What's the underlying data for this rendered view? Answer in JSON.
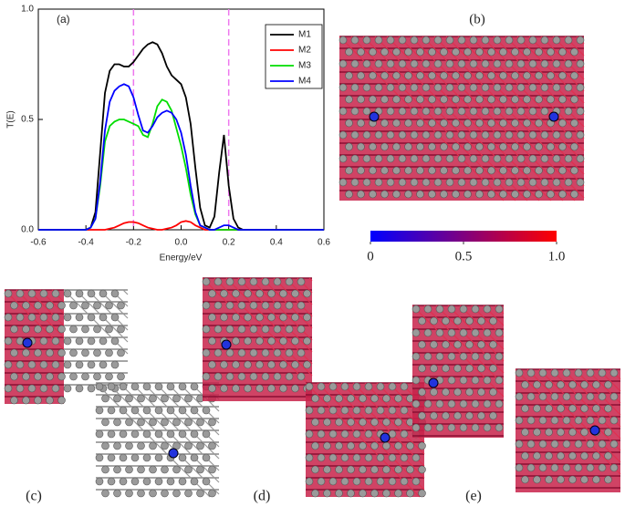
{
  "chart_data": {
    "type": "line",
    "panel_label": "(a)",
    "xlabel": "Energy/eV",
    "ylabel": "T(E)",
    "x": [
      -0.6,
      -0.4,
      -0.38,
      -0.36,
      -0.34,
      -0.32,
      -0.3,
      -0.28,
      -0.26,
      -0.24,
      -0.22,
      -0.2,
      -0.18,
      -0.16,
      -0.14,
      -0.12,
      -0.1,
      -0.08,
      -0.06,
      -0.04,
      -0.02,
      0,
      0.02,
      0.04,
      0.06,
      0.08,
      0.1,
      0.12,
      0.14,
      0.16,
      0.18,
      0.2,
      0.22,
      0.24,
      0.26,
      0.28,
      0.4,
      0.6
    ],
    "series": [
      {
        "name": "M1",
        "color": "#000000",
        "values": [
          0,
          0,
          0.01,
          0.08,
          0.35,
          0.62,
          0.72,
          0.75,
          0.75,
          0.74,
          0.74,
          0.76,
          0.79,
          0.82,
          0.84,
          0.85,
          0.84,
          0.8,
          0.74,
          0.7,
          0.68,
          0.66,
          0.6,
          0.48,
          0.28,
          0.1,
          0.02,
          0.01,
          0.06,
          0.26,
          0.43,
          0.2,
          0.05,
          0.01,
          0,
          0,
          0,
          0
        ]
      },
      {
        "name": "M2",
        "color": "#ff0000",
        "values": [
          0,
          0,
          0,
          0,
          0,
          0,
          0.005,
          0.01,
          0.02,
          0.03,
          0.035,
          0.035,
          0.03,
          0.02,
          0.01,
          0.005,
          0,
          0,
          0.005,
          0.01,
          0.02,
          0.035,
          0.04,
          0.035,
          0.02,
          0.01,
          0,
          0,
          0,
          0,
          0,
          0,
          0,
          0,
          0,
          0,
          0,
          0
        ]
      },
      {
        "name": "M3",
        "color": "#00dd00",
        "values": [
          0,
          0,
          0.01,
          0.05,
          0.2,
          0.4,
          0.47,
          0.49,
          0.5,
          0.5,
          0.49,
          0.48,
          0.47,
          0.43,
          0.42,
          0.48,
          0.56,
          0.59,
          0.58,
          0.54,
          0.46,
          0.38,
          0.28,
          0.16,
          0.07,
          0.02,
          0.01,
          0,
          0,
          0,
          0,
          0,
          0,
          0,
          0,
          0,
          0,
          0
        ]
      },
      {
        "name": "M4",
        "color": "#0000ff",
        "values": [
          0,
          0,
          0.01,
          0.05,
          0.22,
          0.45,
          0.58,
          0.63,
          0.65,
          0.66,
          0.65,
          0.6,
          0.52,
          0.45,
          0.44,
          0.47,
          0.51,
          0.53,
          0.54,
          0.53,
          0.5,
          0.44,
          0.34,
          0.2,
          0.08,
          0.02,
          0.01,
          0,
          0,
          0.01,
          0.02,
          0.02,
          0.01,
          0,
          0,
          0,
          0,
          0
        ]
      }
    ],
    "xlim": [
      -0.6,
      0.6
    ],
    "xticks": [
      -0.6,
      -0.4,
      -0.2,
      {
        "value": 0,
        "label": "0.0"
      },
      0.2,
      0.4,
      0.6
    ],
    "ylim": [
      0,
      1
    ],
    "yticks": [
      {
        "value": 0,
        "label": "0.0"
      },
      0.5,
      {
        "value": 1,
        "label": "1.0"
      }
    ],
    "vlines": [
      -0.2,
      0.2
    ],
    "vline_color": "#ee77ee",
    "legend": "upper right"
  },
  "figure": {
    "labels": [
      "(b)",
      "(c)",
      "(d)",
      "(e)"
    ],
    "colorbar": {
      "lim": [
        0,
        1
      ],
      "ticks": [
        0,
        0.5,
        {
          "value": 1,
          "label": "1.0"
        }
      ],
      "colors": [
        "#0000ff",
        "#ff0000"
      ]
    }
  }
}
